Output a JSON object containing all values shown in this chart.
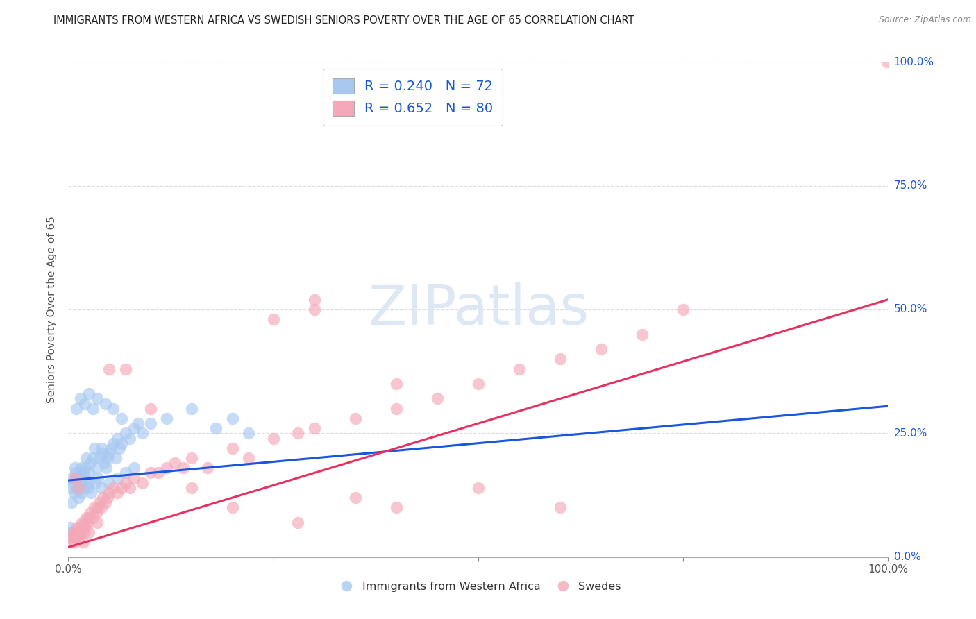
{
  "title": "IMMIGRANTS FROM WESTERN AFRICA VS SWEDISH SENIORS POVERTY OVER THE AGE OF 65 CORRELATION CHART",
  "source": "Source: ZipAtlas.com",
  "ylabel": "Seniors Poverty Over the Age of 65",
  "blue_label": "Immigrants from Western Africa",
  "pink_label": "Swedes",
  "blue_R": 0.24,
  "blue_N": 72,
  "pink_R": 0.652,
  "pink_N": 80,
  "blue_color": "#a8c8f0",
  "pink_color": "#f4a8b8",
  "blue_line_color": "#1a56db",
  "pink_line_color": "#e83060",
  "dashed_line_color": "#aaaaaa",
  "watermark_color": "#dde8f4",
  "legend_edge_color": "#cccccc",
  "grid_color": "#dddddd",
  "right_label_color": "#1a56db",
  "title_color": "#222222",
  "source_color": "#888888",
  "axis_label_color": "#555555",
  "bottom_tick_color": "#555555",
  "xlim": [
    0.0,
    1.0
  ],
  "ylim": [
    0.0,
    1.0
  ],
  "xtick_positions": [
    0.0,
    0.25,
    0.5,
    0.75,
    1.0
  ],
  "xtick_labels": [
    "0.0%",
    "",
    "",
    "",
    "100.0%"
  ],
  "ytick_positions": [
    0.0,
    0.25,
    0.5,
    0.75,
    1.0
  ],
  "ytick_right_labels": [
    "0.0%",
    "25.0%",
    "50.0%",
    "75.0%",
    "100.0%"
  ],
  "blue_x": [
    0.003,
    0.005,
    0.006,
    0.008,
    0.009,
    0.01,
    0.011,
    0.012,
    0.013,
    0.014,
    0.015,
    0.016,
    0.017,
    0.018,
    0.019,
    0.02,
    0.021,
    0.022,
    0.023,
    0.025,
    0.027,
    0.03,
    0.032,
    0.034,
    0.036,
    0.038,
    0.04,
    0.042,
    0.044,
    0.046,
    0.048,
    0.05,
    0.052,
    0.055,
    0.058,
    0.06,
    0.062,
    0.065,
    0.07,
    0.075,
    0.08,
    0.09,
    0.1,
    0.12,
    0.15,
    0.18,
    0.2,
    0.22,
    0.004,
    0.007,
    0.012,
    0.016,
    0.024,
    0.028,
    0.033,
    0.04,
    0.05,
    0.06,
    0.07,
    0.08,
    0.01,
    0.015,
    0.02,
    0.025,
    0.03,
    0.035,
    0.045,
    0.055,
    0.065,
    0.085,
    0.002,
    0.004
  ],
  "blue_y": [
    0.14,
    0.16,
    0.15,
    0.18,
    0.17,
    0.16,
    0.14,
    0.15,
    0.16,
    0.17,
    0.15,
    0.18,
    0.16,
    0.14,
    0.17,
    0.16,
    0.18,
    0.2,
    0.15,
    0.17,
    0.19,
    0.2,
    0.22,
    0.18,
    0.16,
    0.2,
    0.22,
    0.21,
    0.19,
    0.18,
    0.2,
    0.21,
    0.22,
    0.23,
    0.2,
    0.24,
    0.22,
    0.23,
    0.25,
    0.24,
    0.26,
    0.25,
    0.27,
    0.28,
    0.3,
    0.26,
    0.28,
    0.25,
    0.11,
    0.13,
    0.12,
    0.13,
    0.14,
    0.13,
    0.15,
    0.14,
    0.15,
    0.16,
    0.17,
    0.18,
    0.3,
    0.32,
    0.31,
    0.33,
    0.3,
    0.32,
    0.31,
    0.3,
    0.28,
    0.27,
    0.06,
    0.05
  ],
  "pink_x": [
    0.003,
    0.005,
    0.006,
    0.007,
    0.008,
    0.009,
    0.01,
    0.011,
    0.012,
    0.013,
    0.014,
    0.015,
    0.016,
    0.017,
    0.018,
    0.019,
    0.02,
    0.021,
    0.022,
    0.023,
    0.025,
    0.027,
    0.03,
    0.032,
    0.034,
    0.036,
    0.038,
    0.04,
    0.042,
    0.045,
    0.048,
    0.05,
    0.055,
    0.06,
    0.065,
    0.07,
    0.075,
    0.08,
    0.09,
    0.1,
    0.11,
    0.12,
    0.13,
    0.14,
    0.15,
    0.17,
    0.2,
    0.22,
    0.25,
    0.28,
    0.3,
    0.35,
    0.4,
    0.45,
    0.5,
    0.55,
    0.6,
    0.65,
    0.7,
    0.75,
    0.008,
    0.012,
    0.018,
    0.025,
    0.035,
    0.05,
    0.07,
    0.1,
    0.15,
    0.2,
    0.25,
    0.3,
    0.35,
    0.4,
    0.3,
    0.4,
    0.5,
    0.6,
    0.999,
    0.28
  ],
  "pink_y": [
    0.04,
    0.03,
    0.05,
    0.04,
    0.03,
    0.05,
    0.04,
    0.06,
    0.05,
    0.04,
    0.05,
    0.06,
    0.05,
    0.07,
    0.06,
    0.05,
    0.07,
    0.06,
    0.08,
    0.07,
    0.08,
    0.09,
    0.08,
    0.1,
    0.09,
    0.1,
    0.11,
    0.1,
    0.12,
    0.11,
    0.12,
    0.13,
    0.14,
    0.13,
    0.14,
    0.15,
    0.14,
    0.16,
    0.15,
    0.17,
    0.17,
    0.18,
    0.19,
    0.18,
    0.2,
    0.18,
    0.22,
    0.2,
    0.24,
    0.25,
    0.26,
    0.28,
    0.3,
    0.32,
    0.35,
    0.38,
    0.4,
    0.42,
    0.45,
    0.5,
    0.16,
    0.14,
    0.03,
    0.05,
    0.07,
    0.38,
    0.38,
    0.3,
    0.14,
    0.1,
    0.48,
    0.52,
    0.12,
    0.1,
    0.5,
    0.35,
    0.14,
    0.1,
    1.0,
    0.07
  ],
  "blue_reg": [
    0.155,
    0.305
  ],
  "pink_reg": [
    0.02,
    0.52
  ]
}
